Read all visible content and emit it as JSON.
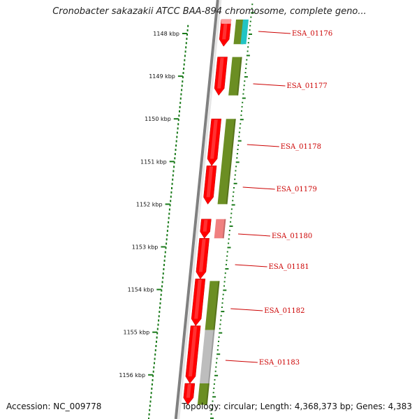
{
  "title": "Cronobacter sakazakii ATCC BAA-894 chromosome, complete geno...",
  "footer": {
    "accession": "Accession: NC_009778",
    "stats": "Topology: circular; Length: 4,368,373 bp; Genes: 4,383"
  },
  "colors": {
    "forward_cds": "#ff0000",
    "forward_cds_highlight": "#ff9a9a",
    "reverse_track_green": "#6b8e23",
    "reverse_track_cyan": "#22c4c4",
    "reverse_track_pink": "#f08080",
    "reverse_track_gray": "#bdbdbd",
    "ruler_ticks": "#1a7a1a",
    "backbone": "#808080",
    "gene_label": "#cc0000"
  },
  "ruler": {
    "unit": "kbp",
    "major_ticks": [
      {
        "label": "1148 kbp",
        "kbp": 1148
      },
      {
        "label": "1149 kbp",
        "kbp": 1149
      },
      {
        "label": "1150 kbp",
        "kbp": 1150
      },
      {
        "label": "1151 kbp",
        "kbp": 1151
      },
      {
        "label": "1152 kbp",
        "kbp": 1152
      },
      {
        "label": "1153 kbp",
        "kbp": 1153
      },
      {
        "label": "1154 kbp",
        "kbp": 1154
      },
      {
        "label": "1155 kbp",
        "kbp": 1155
      },
      {
        "label": "1156 kbp",
        "kbp": 1156
      }
    ]
  },
  "genes": [
    {
      "name": "ESA_01176",
      "start_kbp": 1147.5,
      "end_kbp": 1148.3
    },
    {
      "name": "ESA_01177",
      "start_kbp": 1148.55,
      "end_kbp": 1149.45
    },
    {
      "name": "ESA_01178",
      "start_kbp": 1150.0,
      "end_kbp": 1151.1
    },
    {
      "name": "ESA_01179",
      "start_kbp": 1151.1,
      "end_kbp": 1152.0
    },
    {
      "name": "ESA_01180",
      "start_kbp": 1152.35,
      "end_kbp": 1152.8
    },
    {
      "name": "ESA_01181",
      "start_kbp": 1152.8,
      "end_kbp": 1153.75
    },
    {
      "name": "ESA_01182",
      "start_kbp": 1153.75,
      "end_kbp": 1154.85
    },
    {
      "name": "ESA_01183",
      "start_kbp": 1154.85,
      "end_kbp": 1156.2
    },
    {
      "name": "",
      "start_kbp": 1156.2,
      "end_kbp": 1156.7
    }
  ],
  "reverse_track": [
    {
      "start_kbp": 1147.5,
      "end_kbp": 1148.25,
      "color": "#6b8e23"
    },
    {
      "start_kbp": 1148.55,
      "end_kbp": 1149.45,
      "color": "#6b8e23"
    },
    {
      "start_kbp": 1150.0,
      "end_kbp": 1152.0,
      "color": "#6b8e23"
    },
    {
      "start_kbp": 1152.35,
      "end_kbp": 1152.8,
      "color": "#f08080"
    },
    {
      "start_kbp": 1153.8,
      "end_kbp": 1154.95,
      "color": "#6b8e23"
    },
    {
      "start_kbp": 1154.95,
      "end_kbp": 1156.2,
      "color": "#bdbdbd"
    },
    {
      "start_kbp": 1156.2,
      "end_kbp": 1156.7,
      "color": "#6b8e23"
    }
  ],
  "cyan_feature": {
    "start_kbp": 1147.5,
    "end_kbp": 1148.25,
    "color": "#22c4c4"
  }
}
